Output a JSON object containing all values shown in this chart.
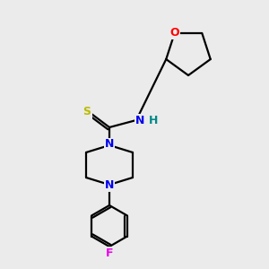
{
  "background_color": "#ebebeb",
  "atom_colors": {
    "C": "#000000",
    "N": "#0000ee",
    "O": "#ff0000",
    "S": "#bbbb00",
    "F": "#ee00ee",
    "H": "#008888"
  },
  "figsize": [
    3.0,
    3.0
  ],
  "dpi": 100,
  "lw": 1.6,
  "fontsize": 9
}
